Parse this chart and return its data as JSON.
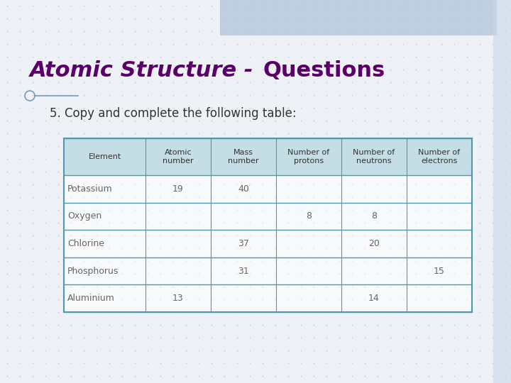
{
  "title_part1": "Atomic Structure - ",
  "title_part2": "Questions",
  "subtitle": "5. Copy and complete the following table:",
  "title_color": "#5B006B",
  "subtitle_color": "#333333",
  "bg_color": "#eef2f7",
  "bg_grid_color": "#c5d5e5",
  "header_bg": "#b8d8e0",
  "table_border_color": "#4d9ab0",
  "columns": [
    "Element",
    "Atomic\nnumber",
    "Mass\nnumber",
    "Number of\nprotons",
    "Number of\nneutrons",
    "Number of\nelectrons"
  ],
  "col_widths": [
    1.5,
    1.2,
    1.2,
    1.2,
    1.2,
    1.2
  ],
  "rows": [
    [
      "Potassium",
      "19",
      "40",
      "",
      "",
      ""
    ],
    [
      "Oxygen",
      "",
      "",
      "8",
      "8",
      ""
    ],
    [
      "Chlorine",
      "",
      "37",
      "",
      "20",
      ""
    ],
    [
      "Phosphorus",
      "",
      "31",
      "",
      "",
      "15"
    ],
    [
      "Aluminium",
      "13",
      "",
      "",
      "14",
      ""
    ]
  ],
  "top_rect_color": "#b0c4d8",
  "right_rect_color": "#c8d8e8",
  "title_fontsize": 22,
  "subtitle_fontsize": 12,
  "header_fontsize": 8,
  "cell_fontsize": 9,
  "cell_text_color": "#666666"
}
